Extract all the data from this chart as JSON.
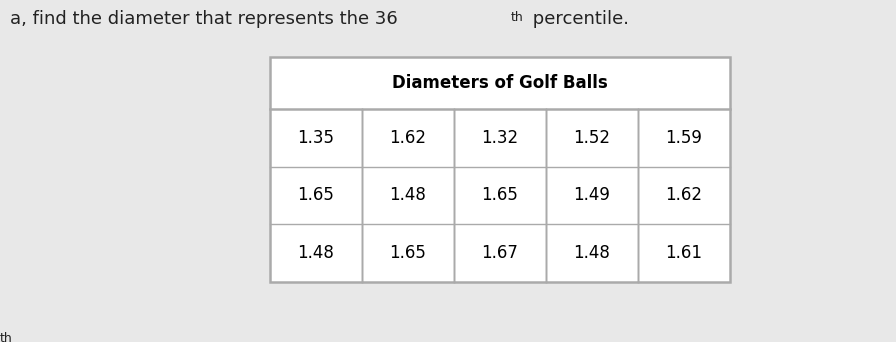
{
  "title": "Diameters of Golf Balls",
  "table_data": [
    [
      "1.35",
      "1.62",
      "1.32",
      "1.52",
      "1.59"
    ],
    [
      "1.65",
      "1.48",
      "1.65",
      "1.49",
      "1.62"
    ],
    [
      "1.48",
      "1.65",
      "1.67",
      "1.48",
      "1.61"
    ]
  ],
  "n_rows": 3,
  "n_cols": 5,
  "bg_color": "#e8e8e8",
  "table_bg": "#ffffff",
  "border_color": "#aaaaaa",
  "title_fontsize": 12,
  "cell_fontsize": 12,
  "above_text_main": "a, find the diameter that represents the 36",
  "above_superscript": "th",
  "above_text_end": " percentile.",
  "text_color": "#222222"
}
